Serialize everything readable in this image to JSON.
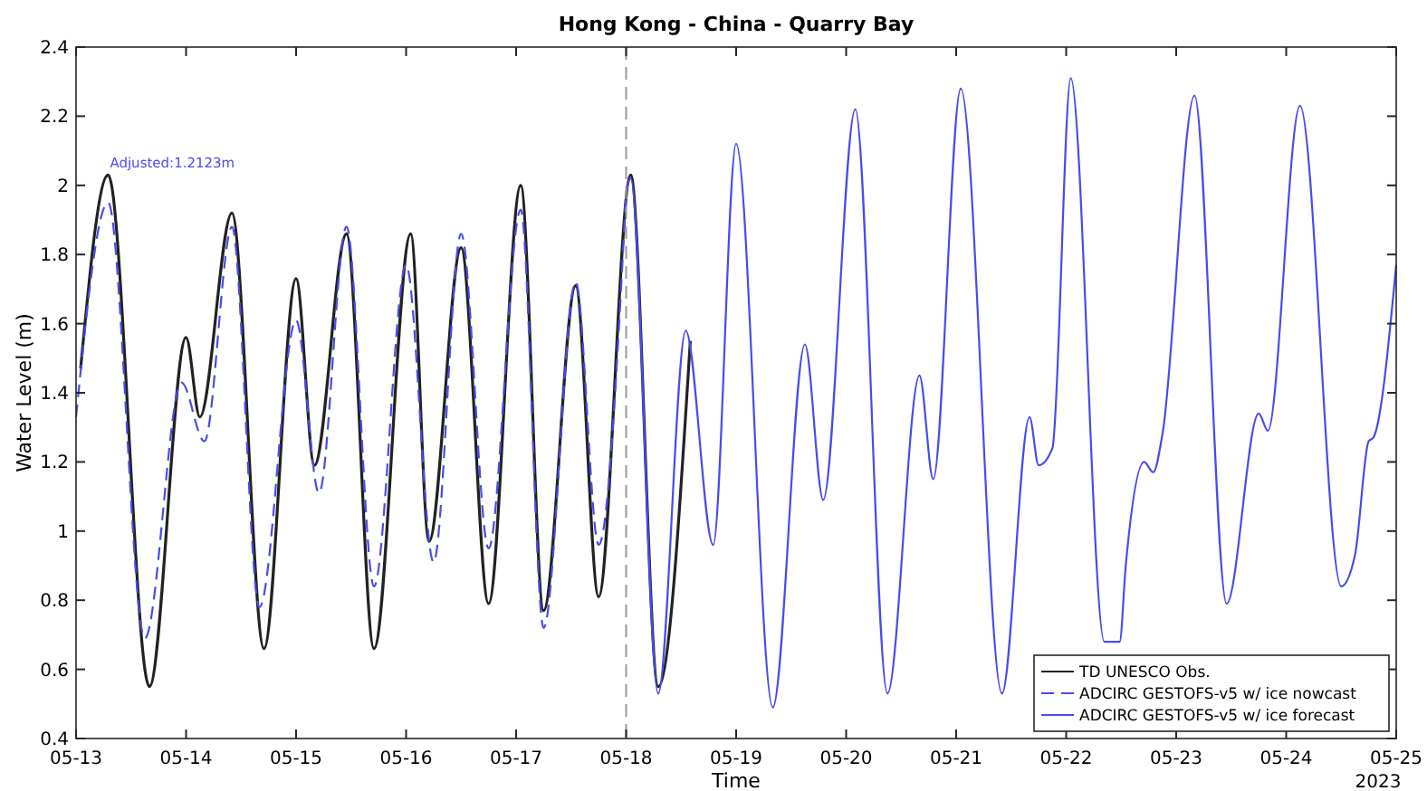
{
  "chart_data": {
    "type": "line",
    "title": "Hong Kong - China - Quarry Bay",
    "xlabel": "Time",
    "ylabel": "Water Level (m)",
    "xlim": [
      "2023-05-13",
      "2023-05-25"
    ],
    "xticks": [
      {
        "value": "2023-05-13",
        "label": "05-13"
      },
      {
        "value": "2023-05-14",
        "label": "05-14"
      },
      {
        "value": "2023-05-15",
        "label": "05-15"
      },
      {
        "value": "2023-05-16",
        "label": "05-16"
      },
      {
        "value": "2023-05-17",
        "label": "05-17"
      },
      {
        "value": "2023-05-18",
        "label": "05-18"
      },
      {
        "value": "2023-05-19",
        "label": "05-19"
      },
      {
        "value": "2023-05-20",
        "label": "05-20"
      },
      {
        "value": "2023-05-21",
        "label": "05-21"
      },
      {
        "value": "2023-05-22",
        "label": "05-22"
      },
      {
        "value": "2023-05-23",
        "label": "05-23"
      },
      {
        "value": "2023-05-24",
        "label": "05-24"
      },
      {
        "value": "2023-05-25",
        "label": "05-25"
      }
    ],
    "ylim": [
      0.4,
      2.4
    ],
    "yticks": [
      0.4,
      0.6,
      0.8,
      1,
      1.2,
      1.4,
      1.6,
      1.8,
      2,
      2.2,
      2.4
    ],
    "grid": false,
    "legend": "bottom right",
    "ref_lines": [
      {
        "axis": "x",
        "value": "2023-05-18",
        "color": "#999999",
        "line_style": "dashed"
      }
    ],
    "annotations": [
      {
        "text": "Adjusted:1.2123m",
        "x": "2023-05-13T07:00",
        "y": 2.03
      },
      "2023"
    ],
    "series": [
      {
        "name": "TD UNESCO Obs.",
        "color": "#222222",
        "line_style": "solid",
        "x": [
          "2023-05-13T01:00",
          "2023-05-13T07:00",
          "2023-05-13T16:00",
          "2023-05-14T00:00",
          "2023-05-14T03:00",
          "2023-05-14T10:00",
          "2023-05-14T17:00",
          "2023-05-15T00:00",
          "2023-05-15T04:00",
          "2023-05-15T11:00",
          "2023-05-15T17:00",
          "2023-05-16T01:00",
          "2023-05-16T05:00",
          "2023-05-16T12:00",
          "2023-05-16T18:00",
          "2023-05-17T01:00",
          "2023-05-17T06:00",
          "2023-05-17T13:00",
          "2023-05-17T18:00",
          "2023-05-18T01:00",
          "2023-05-18T07:00",
          "2023-05-18T14:00"
        ],
        "values": [
          1.47,
          2.03,
          0.55,
          1.56,
          1.33,
          1.92,
          0.66,
          1.73,
          1.19,
          1.86,
          0.66,
          1.86,
          0.97,
          1.82,
          0.79,
          2.0,
          0.77,
          1.71,
          0.81,
          2.03,
          0.55,
          1.55
        ]
      },
      {
        "name": "ADCIRC GESTOFS-v5 w/ ice nowcast",
        "color": "#4a4aee",
        "line_style": "dashed",
        "x": [
          "2023-05-13T00:00",
          "2023-05-13T07:00",
          "2023-05-13T15:00",
          "2023-05-13T23:00",
          "2023-05-14T04:00",
          "2023-05-14T10:00",
          "2023-05-14T16:00",
          "2023-05-15T00:00",
          "2023-05-15T05:00",
          "2023-05-15T11:00",
          "2023-05-15T17:00",
          "2023-05-16T00:00",
          "2023-05-16T06:00",
          "2023-05-16T12:00",
          "2023-05-16T18:00",
          "2023-05-17T01:00",
          "2023-05-17T06:00",
          "2023-05-17T13:00",
          "2023-05-17T18:00",
          "2023-05-18T00:00"
        ],
        "values": [
          1.33,
          1.95,
          0.69,
          1.43,
          1.26,
          1.88,
          0.78,
          1.61,
          1.11,
          1.88,
          0.84,
          1.77,
          0.91,
          1.86,
          0.95,
          1.93,
          0.72,
          1.72,
          0.96,
          1.98
        ]
      },
      {
        "name": "ADCIRC GESTOFS-v5 w/ ice forecast",
        "color": "#4a4aee",
        "line_style": "solid",
        "x": [
          "2023-05-18T00:00",
          "2023-05-18T01:00",
          "2023-05-18T07:00",
          "2023-05-18T13:00",
          "2023-05-18T19:00",
          "2023-05-19T00:00",
          "2023-05-19T08:00",
          "2023-05-19T15:00",
          "2023-05-19T19:00",
          "2023-05-20T02:00",
          "2023-05-20T09:00",
          "2023-05-20T16:00",
          "2023-05-20T19:00",
          "2023-05-21T01:00",
          "2023-05-21T10:00",
          "2023-05-21T16:00",
          "2023-05-21T18:00",
          "2023-05-21T21:00",
          "2023-05-22T01:00",
          "2023-05-22T08:20",
          "2023-05-22T11:40",
          "2023-05-22T13:00",
          "2023-05-22T17:00",
          "2023-05-22T19:00",
          "2023-05-22T21:00",
          "2023-05-23T04:00",
          "2023-05-23T11:00",
          "2023-05-23T18:00",
          "2023-05-23T20:00",
          "2023-05-24T03:00",
          "2023-05-24T12:00",
          "2023-05-24T15:00",
          "2023-05-24T18:00",
          "2023-05-24T19:00",
          "2023-05-25T00:00"
        ],
        "values": [
          1.98,
          2.02,
          0.53,
          1.58,
          0.96,
          2.12,
          0.49,
          1.54,
          1.09,
          2.22,
          0.53,
          1.45,
          1.15,
          2.28,
          0.53,
          1.33,
          1.19,
          1.24,
          2.31,
          0.68,
          0.68,
          0.9,
          1.2,
          1.17,
          1.28,
          2.26,
          0.79,
          1.34,
          1.29,
          2.23,
          0.84,
          0.93,
          1.26,
          1.27,
          1.77
        ]
      }
    ]
  }
}
